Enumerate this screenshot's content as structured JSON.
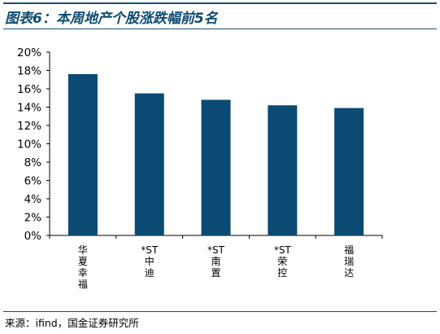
{
  "title": "图表6：本周地产个股涨跌幅前5名",
  "source": "来源：ifind，国金证券研究所",
  "colors": {
    "bar": "#0b4a72",
    "accent": "#1a4f72",
    "axis": "#000000"
  },
  "chart_data": {
    "type": "bar",
    "categories": [
      "华夏幸福",
      "*ST中迪",
      "*ST南置",
      "*ST荣控",
      "福瑞达"
    ],
    "values": [
      17.6,
      15.5,
      14.8,
      14.2,
      13.9
    ],
    "unit": "%",
    "ylim": [
      0,
      20
    ],
    "yticks": [
      0,
      2,
      4,
      6,
      8,
      10,
      12,
      14,
      16,
      18,
      20
    ],
    "ytick_labels": [
      "0%",
      "2%",
      "4%",
      "6%",
      "8%",
      "10%",
      "12%",
      "14%",
      "16%",
      "18%",
      "20%"
    ],
    "xlabel": "",
    "ylabel": "",
    "grid": false,
    "legend": "none"
  }
}
